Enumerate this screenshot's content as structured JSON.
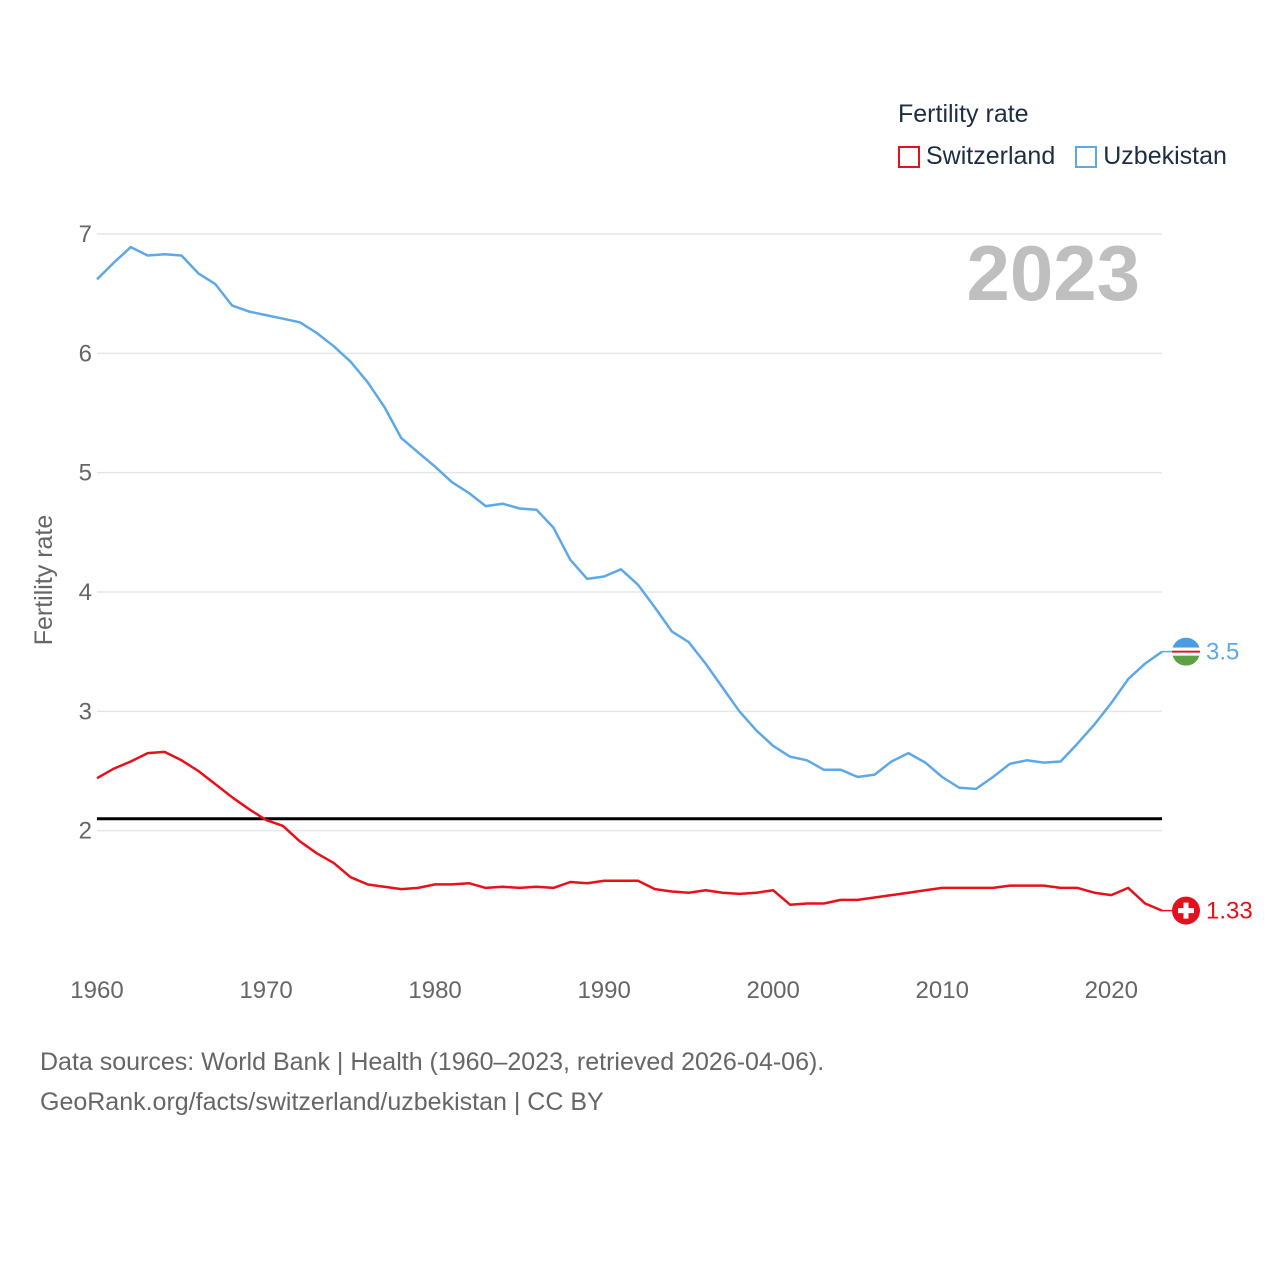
{
  "legend": {
    "title": "Fertility rate",
    "items": [
      {
        "label": "Switzerland",
        "color": "#e8101a"
      },
      {
        "label": "Uzbekistan",
        "color": "#5ea8e8"
      }
    ]
  },
  "footer": {
    "line1": "Data sources: World Bank | Health (1960–2023, retrieved 2026-04-06).",
    "line2": "GeoRank.org/facts/switzerland/uzbekistan | CC BY"
  },
  "chart_data": {
    "type": "line",
    "title": "Fertility rate",
    "year_badge": "2023",
    "xlabel": "",
    "ylabel": "Fertility rate",
    "xlim": [
      1960,
      2023
    ],
    "ylim": [
      1,
      7
    ],
    "x_ticks": [
      "1960",
      "1970",
      "1980",
      "1990",
      "2000",
      "2010",
      "2020"
    ],
    "y_ticks": [
      "2",
      "3",
      "4",
      "5",
      "6",
      "7"
    ],
    "reference_line": {
      "value": 2.1,
      "color": "#000000"
    },
    "x": [
      1960,
      1961,
      1962,
      1963,
      1964,
      1965,
      1966,
      1967,
      1968,
      1969,
      1970,
      1971,
      1972,
      1973,
      1974,
      1975,
      1976,
      1977,
      1978,
      1979,
      1980,
      1981,
      1982,
      1983,
      1984,
      1985,
      1986,
      1987,
      1988,
      1989,
      1990,
      1991,
      1992,
      1993,
      1994,
      1995,
      1996,
      1997,
      1998,
      1999,
      2000,
      2001,
      2002,
      2003,
      2004,
      2005,
      2006,
      2007,
      2008,
      2009,
      2010,
      2011,
      2012,
      2013,
      2014,
      2015,
      2016,
      2017,
      2018,
      2019,
      2020,
      2021,
      2022,
      2023
    ],
    "series": [
      {
        "name": "Switzerland",
        "color": "#e8101a",
        "end_label": "1.33",
        "values": [
          2.44,
          2.52,
          2.58,
          2.65,
          2.66,
          2.59,
          2.5,
          2.39,
          2.28,
          2.18,
          2.09,
          2.04,
          1.91,
          1.81,
          1.73,
          1.61,
          1.55,
          1.53,
          1.51,
          1.52,
          1.55,
          1.55,
          1.56,
          1.52,
          1.53,
          1.52,
          1.53,
          1.52,
          1.57,
          1.56,
          1.58,
          1.58,
          1.58,
          1.51,
          1.49,
          1.48,
          1.5,
          1.48,
          1.47,
          1.48,
          1.5,
          1.38,
          1.39,
          1.39,
          1.42,
          1.42,
          1.44,
          1.46,
          1.48,
          1.5,
          1.52,
          1.52,
          1.52,
          1.52,
          1.54,
          1.54,
          1.54,
          1.52,
          1.52,
          1.48,
          1.46,
          1.52,
          1.39,
          1.33
        ]
      },
      {
        "name": "Uzbekistan",
        "color": "#5ea8e8",
        "end_label": "3.5",
        "values": [
          6.62,
          6.76,
          6.89,
          6.82,
          6.83,
          6.82,
          6.67,
          6.58,
          6.4,
          6.35,
          6.32,
          6.29,
          6.26,
          6.17,
          6.06,
          5.93,
          5.76,
          5.55,
          5.29,
          5.17,
          5.05,
          4.92,
          4.83,
          4.72,
          4.74,
          4.7,
          4.69,
          4.54,
          4.27,
          4.11,
          4.13,
          4.19,
          4.06,
          3.87,
          3.67,
          3.58,
          3.4,
          3.2,
          3.0,
          2.84,
          2.71,
          2.62,
          2.59,
          2.51,
          2.51,
          2.45,
          2.47,
          2.58,
          2.65,
          2.57,
          2.45,
          2.36,
          2.35,
          2.45,
          2.56,
          2.59,
          2.57,
          2.58,
          2.73,
          2.89,
          3.07,
          3.27,
          3.4,
          3.5
        ]
      }
    ]
  }
}
